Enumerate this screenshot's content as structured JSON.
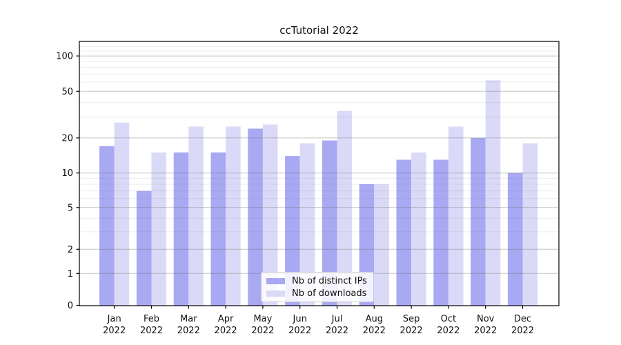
{
  "chart_data": {
    "type": "bar",
    "title": "ccTutorial 2022",
    "categories": [
      "Jan 2022",
      "Feb 2022",
      "Mar 2022",
      "Apr 2022",
      "May 2022",
      "Jun 2022",
      "Jul 2022",
      "Aug 2022",
      "Sep 2022",
      "Oct 2022",
      "Nov 2022",
      "Dec 2022"
    ],
    "series": [
      {
        "name": "Nb of distinct IPs",
        "color": "#a8a8f3",
        "values": [
          17,
          7,
          15,
          15,
          24,
          14,
          19,
          8,
          13,
          13,
          20,
          10
        ]
      },
      {
        "name": "Nb of downloads",
        "color": "#dadaf8",
        "values": [
          27,
          15,
          25,
          25,
          26,
          18,
          34,
          8,
          15,
          25,
          62,
          18
        ]
      }
    ],
    "y_axis": {
      "scale": "asinh (log-like with linear region near zero)",
      "major_ticks": [
        0,
        1,
        2,
        5,
        10,
        20,
        50,
        100
      ],
      "major_tick_labels": [
        "0",
        "1",
        "2",
        "5",
        "10",
        "20",
        "50",
        "100"
      ],
      "minor_ticks": [
        3,
        4,
        6,
        7,
        8,
        9,
        30,
        40,
        60,
        70,
        80,
        90,
        110,
        120
      ],
      "ylim": [
        0,
        130
      ]
    },
    "x_axis": {
      "tick_label_format": "two lines: month above, year below"
    },
    "legend": {
      "position": "inside plot, lower center",
      "entries": [
        "Nb of distinct IPs",
        "Nb of downloads"
      ]
    },
    "grid": {
      "major": true,
      "minor": true,
      "drawn_above_bars": true
    }
  },
  "colors": {
    "background": "#ffffff",
    "spine": "#000000",
    "tick_label": "#111111",
    "major_grid": "rgba(110,110,110,0.40)",
    "minor_grid": "rgba(110,110,110,0.12)",
    "legend_border": "#cccccc",
    "legend_bg": "rgba(255,255,255,0.85)"
  }
}
